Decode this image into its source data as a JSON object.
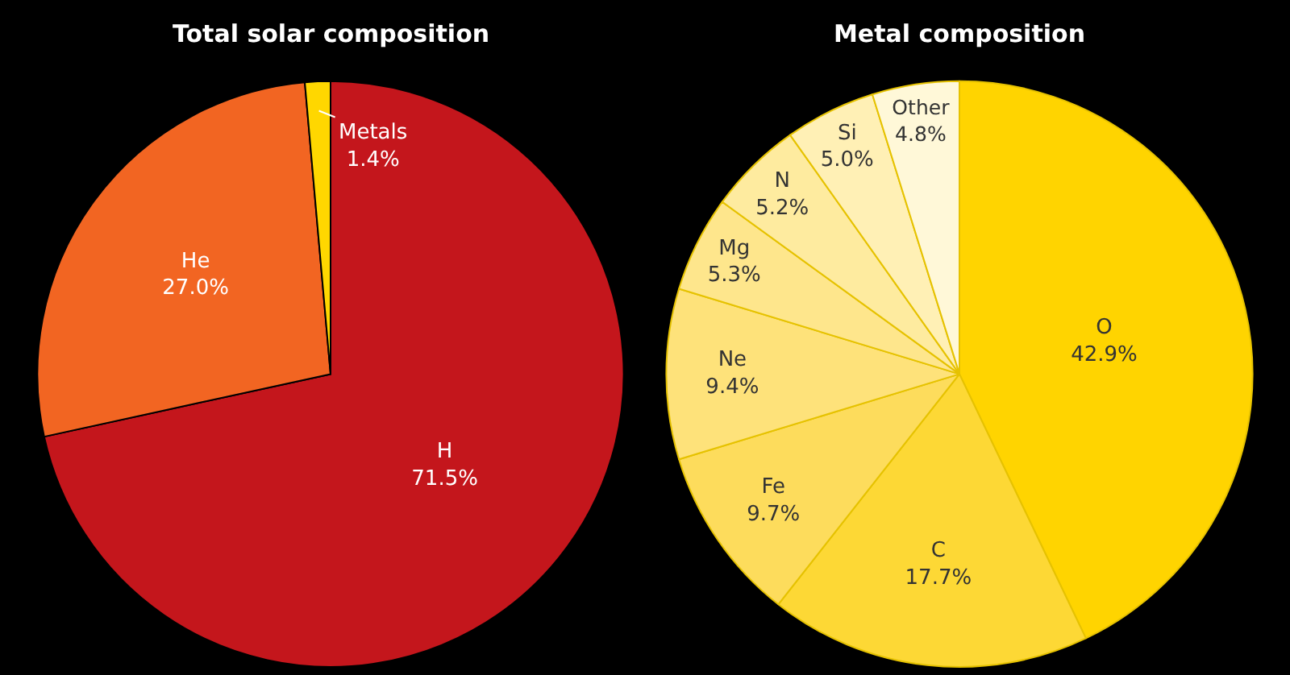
{
  "chart_data": [
    {
      "type": "pie",
      "title": "Total solar composition",
      "categories": [
        "H",
        "He",
        "Metals"
      ],
      "values": [
        71.5,
        27.0,
        1.4
      ],
      "value_labels": [
        "71.5%",
        "27.0%",
        "1.4%"
      ],
      "colors": [
        "#c4161c",
        "#f26522",
        "#ffd700"
      ]
    },
    {
      "type": "pie",
      "title": "Metal composition",
      "categories": [
        "O",
        "C",
        "Fe",
        "Ne",
        "Mg",
        "N",
        "Si",
        "Other"
      ],
      "values": [
        42.9,
        17.7,
        9.7,
        9.4,
        5.3,
        5.2,
        5.0,
        4.8
      ],
      "value_labels": [
        "42.9%",
        "17.7%",
        "9.7%",
        "9.4%",
        "5.3%",
        "5.2%",
        "5.0%",
        "4.8%"
      ],
      "colors": [
        "#ffd400",
        "#fdd835",
        "#fddc5c",
        "#fee27a",
        "#fee68c",
        "#feeb9f",
        "#fff0b5",
        "#fff8d8"
      ]
    }
  ]
}
